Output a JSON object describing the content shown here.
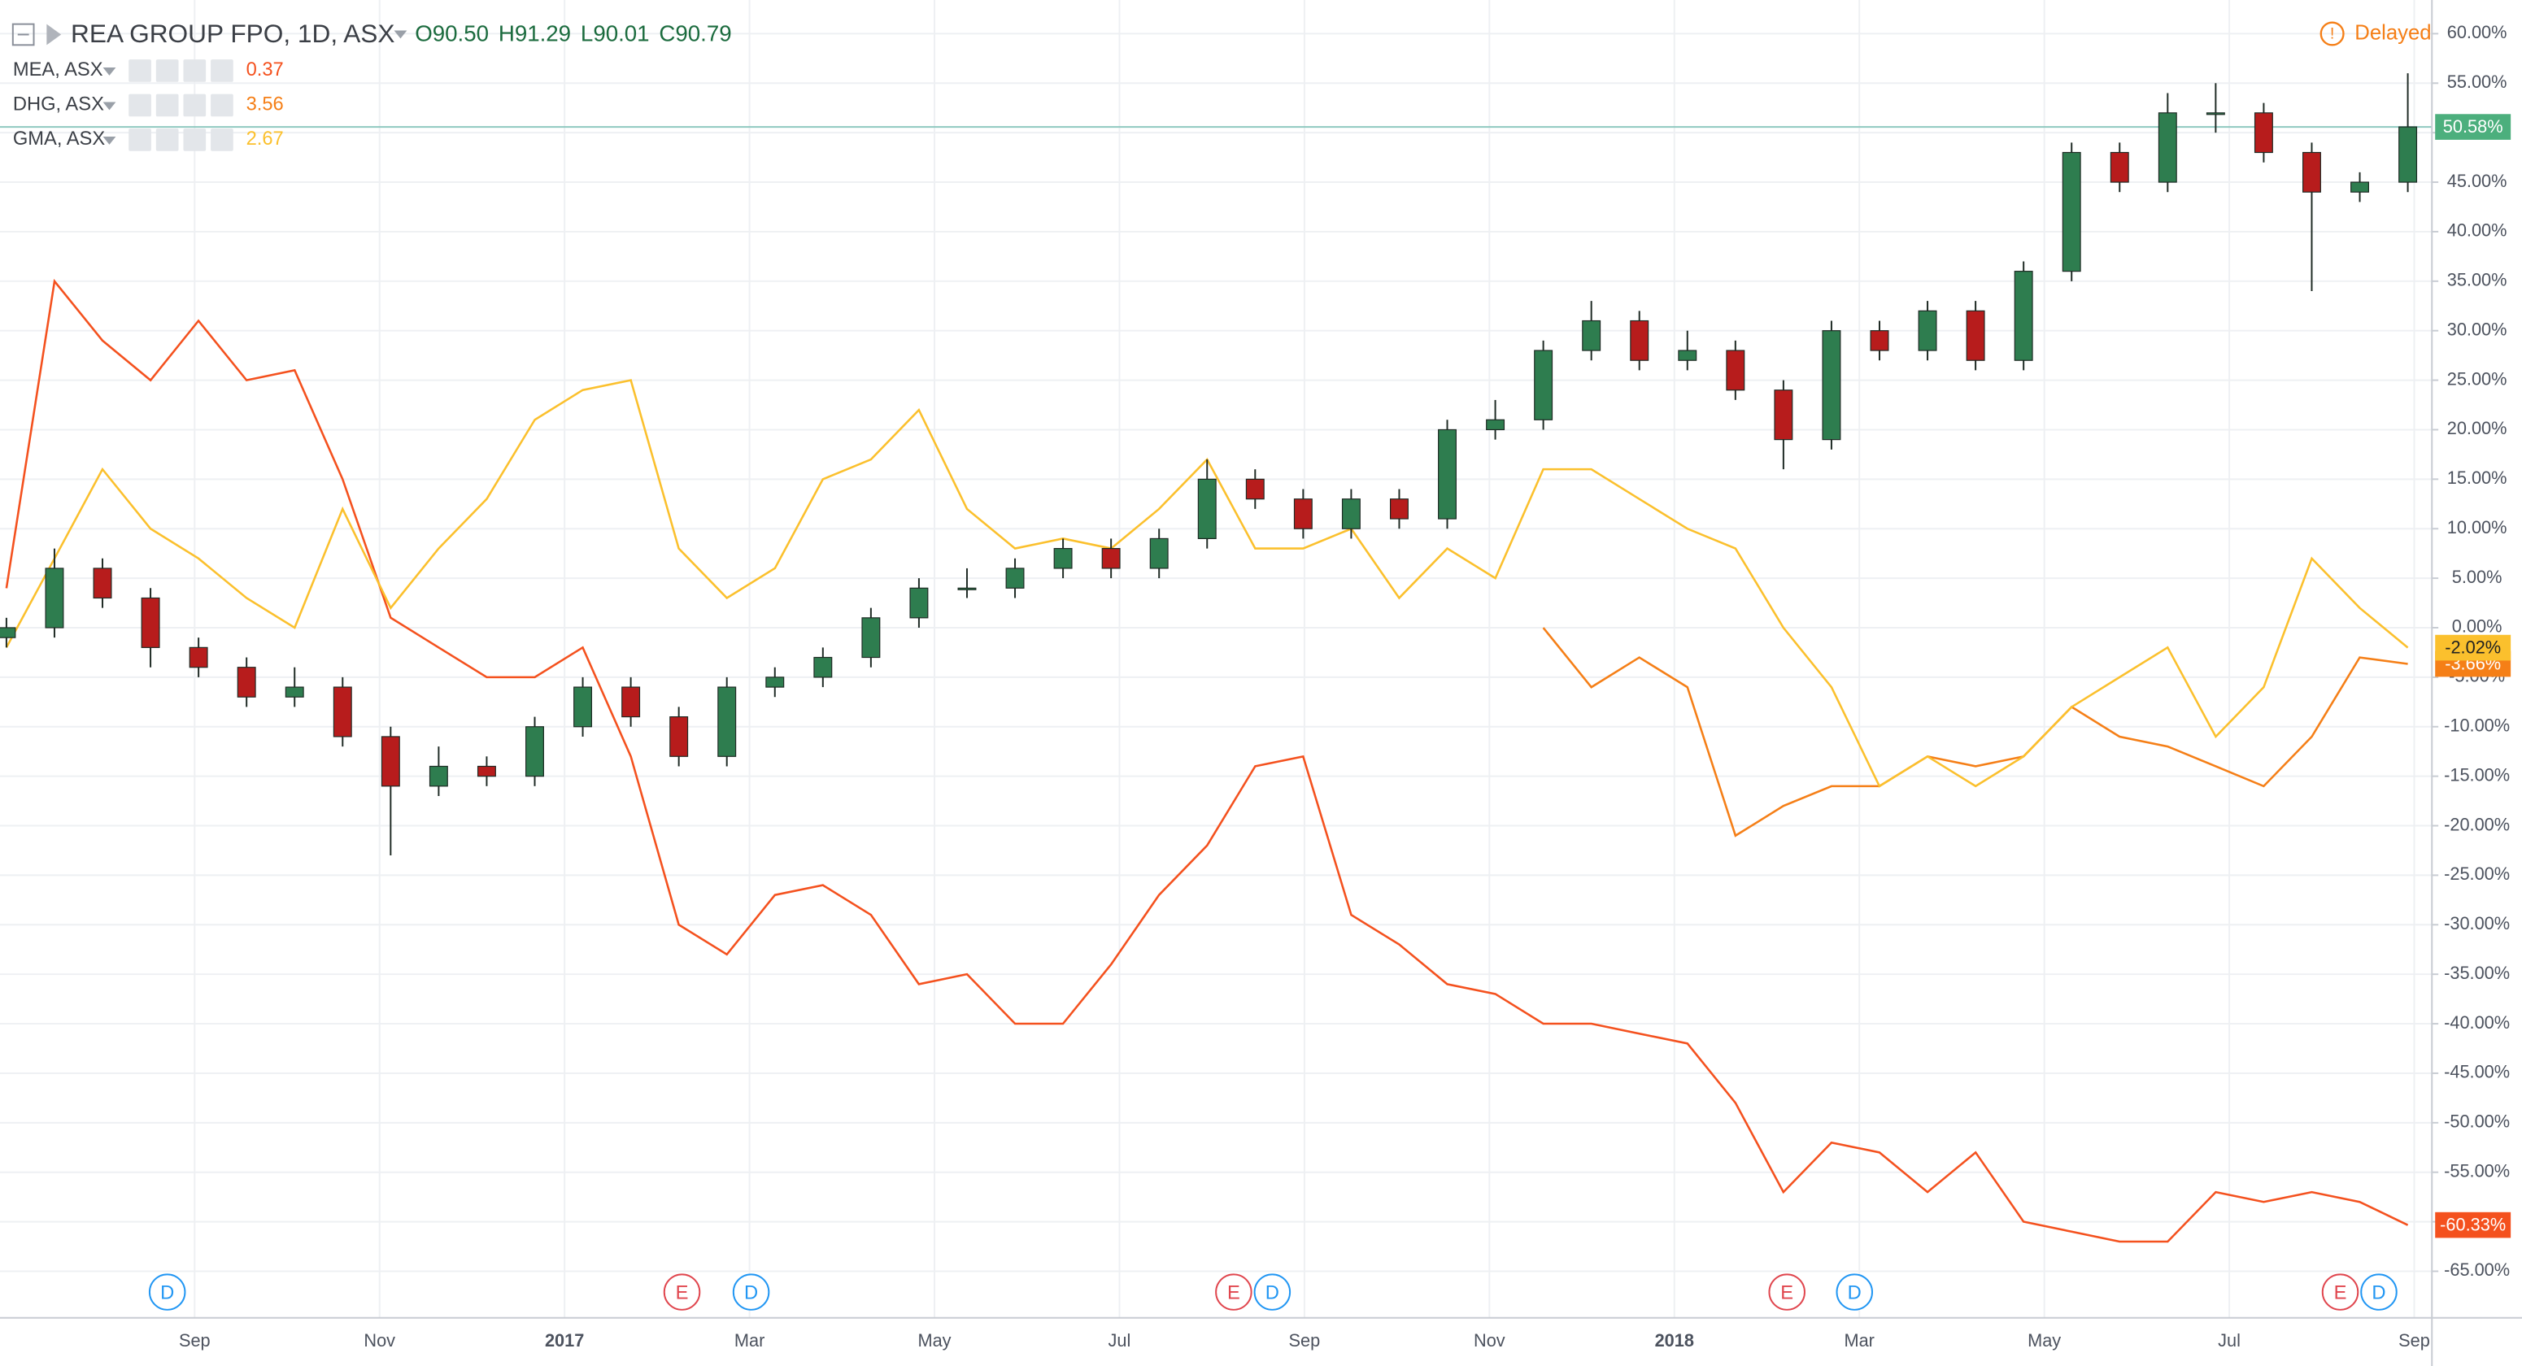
{
  "chart_data": {
    "type": "candlestick",
    "title": "REA GROUP FPO, 1D, ASX",
    "quote": [
      "O90.50",
      "H91.29",
      "L90.01",
      "C90.79"
    ],
    "status": "Delayed",
    "candles": {
      "up_color": "#2e7d4f",
      "down_color": "#b71c1c",
      "tag_color": "#4caf7d",
      "open": [
        -1,
        0,
        6,
        3,
        -2,
        -4,
        -7,
        -6,
        -11,
        -16,
        -14,
        -15,
        -10,
        -6,
        -9,
        -13,
        -6,
        -5,
        -3,
        1,
        4,
        4,
        6,
        8,
        6,
        9,
        15,
        13,
        10,
        13,
        11,
        20,
        21,
        28,
        31,
        27,
        28,
        24,
        19,
        30,
        28,
        32,
        27,
        36,
        48,
        45,
        52,
        52,
        48,
        44,
        45
      ],
      "high": [
        1,
        8,
        7,
        4,
        -1,
        -3,
        -4,
        -5,
        -10,
        -12,
        -13,
        -9,
        -5,
        -5,
        -8,
        -5,
        -4,
        -2,
        2,
        5,
        6,
        7,
        9,
        9,
        10,
        17,
        16,
        14,
        14,
        14,
        21,
        23,
        29,
        33,
        32,
        30,
        29,
        25,
        31,
        31,
        33,
        33,
        37,
        49,
        49,
        54,
        55,
        53,
        49,
        46,
        56
      ],
      "low": [
        -2,
        -1,
        2,
        -4,
        -5,
        -8,
        -8,
        -12,
        -23,
        -17,
        -16,
        -16,
        -11,
        -10,
        -14,
        -14,
        -7,
        -6,
        -4,
        0,
        3,
        3,
        5,
        5,
        5,
        8,
        12,
        9,
        9,
        10,
        10,
        19,
        20,
        27,
        26,
        26,
        23,
        16,
        18,
        27,
        27,
        26,
        26,
        35,
        44,
        44,
        50,
        47,
        34,
        43,
        44
      ],
      "close": [
        0,
        6,
        3,
        -2,
        -4,
        -7,
        -6,
        -11,
        -16,
        -14,
        -15,
        -10,
        -6,
        -9,
        -13,
        -6,
        -5,
        -3,
        1,
        4,
        4,
        6,
        8,
        6,
        9,
        15,
        13,
        10,
        13,
        11,
        20,
        21,
        28,
        31,
        27,
        28,
        24,
        19,
        30,
        28,
        32,
        27,
        36,
        48,
        45,
        52,
        52,
        48,
        44,
        45,
        50.58
      ],
      "last_label": "50.58%"
    },
    "series": [
      {
        "name": "MEA, ASX",
        "legend_value": 0.37,
        "color": "#f4511e",
        "last_label": "-60.33%",
        "values": [
          4,
          35,
          29,
          25,
          31,
          25,
          26,
          15,
          1,
          -2,
          -5,
          -5,
          -2,
          -13,
          -30,
          -33,
          -27,
          -26,
          -29,
          -36,
          -35,
          -40,
          -40,
          -34,
          -27,
          -22,
          -14,
          -13,
          -29,
          -32,
          -36,
          -37,
          -40,
          -40,
          -41,
          -42,
          -48,
          -57,
          -52,
          -53,
          -57,
          -53,
          -60,
          -61,
          -62,
          -62,
          -57,
          -58,
          -57,
          -58,
          -60.33
        ]
      },
      {
        "name": "DHG, ASX",
        "legend_value": 3.56,
        "color": "#f57f17",
        "last_label": "-3.66%",
        "values": [
          null,
          null,
          null,
          null,
          null,
          null,
          null,
          null,
          null,
          null,
          null,
          null,
          null,
          null,
          null,
          null,
          null,
          null,
          null,
          null,
          null,
          null,
          null,
          null,
          null,
          null,
          null,
          null,
          null,
          null,
          null,
          null,
          0,
          -6,
          -3,
          -6,
          -21,
          -18,
          -16,
          -16,
          -13,
          -14,
          -13,
          -8,
          -11,
          -12,
          -14,
          -16,
          -11,
          -3,
          -3.66
        ]
      },
      {
        "name": "GMA, ASX",
        "legend_value": 2.67,
        "color": "#fbc02d",
        "last_label": "-2.02%",
        "values": [
          -2,
          7,
          16,
          10,
          7,
          3,
          0,
          12,
          2,
          8,
          13,
          21,
          24,
          25,
          8,
          3,
          6,
          15,
          17,
          22,
          12,
          8,
          9,
          8,
          12,
          17,
          8,
          8,
          10,
          3,
          8,
          5,
          16,
          16,
          13,
          10,
          8,
          0,
          -6,
          -16,
          -13,
          -16,
          -13,
          -8,
          -5,
          -2,
          -11,
          -6,
          7,
          2,
          -2.02
        ]
      }
    ],
    "x_labels": [
      "Sep",
      "Nov",
      "2017",
      "Mar",
      "May",
      "Jul",
      "Sep",
      "Nov",
      "2018",
      "Mar",
      "May",
      "Jul",
      "Sep"
    ],
    "ylim": [
      -69.7,
      63.4
    ],
    "yticks": [
      {
        "value": 60,
        "label": "60.00%"
      },
      {
        "value": 55,
        "label": "55.00%"
      },
      {
        "value": 50,
        "label": "50.00%"
      },
      {
        "value": 45,
        "label": "45.00%"
      },
      {
        "value": 40,
        "label": "40.00%"
      },
      {
        "value": 35,
        "label": "35.00%"
      },
      {
        "value": 30,
        "label": "30.00%"
      },
      {
        "value": 25,
        "label": "25.00%"
      },
      {
        "value": 20,
        "label": "20.00%"
      },
      {
        "value": 15,
        "label": "15.00%"
      },
      {
        "value": 10,
        "label": "10.00%"
      },
      {
        "value": 5,
        "label": "5.00%"
      },
      {
        "value": 0,
        "label": "0.00%"
      },
      {
        "value": -5,
        "label": "-5.00%"
      },
      {
        "value": -10,
        "label": "-10.00%"
      },
      {
        "value": -15,
        "label": "-15.00%"
      },
      {
        "value": -20,
        "label": "-20.00%"
      },
      {
        "value": -25,
        "label": "-25.00%"
      },
      {
        "value": -30,
        "label": "-30.00%"
      },
      {
        "value": -35,
        "label": "-35.00%"
      },
      {
        "value": -40,
        "label": "-40.00%"
      },
      {
        "value": -45,
        "label": "-45.00%"
      },
      {
        "value": -50,
        "label": "-50.00%"
      },
      {
        "value": -55,
        "label": "-55.00%"
      },
      {
        "value": -60,
        "label": "-60.00%"
      },
      {
        "value": -65,
        "label": "-65.00%"
      }
    ],
    "grid": true,
    "events": [
      "D",
      "E",
      "D",
      "E",
      "D",
      "E",
      "D",
      "E",
      "D"
    ]
  }
}
